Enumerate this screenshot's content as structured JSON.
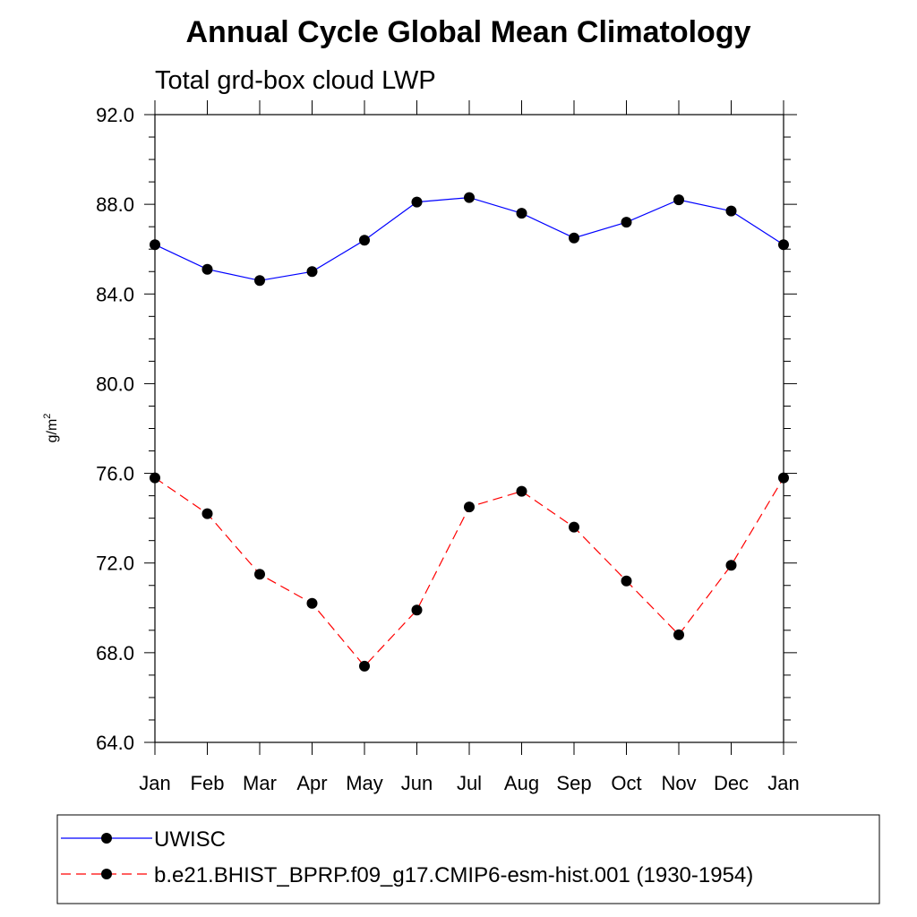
{
  "chart_data": {
    "type": "line",
    "title": "Annual Cycle Global Mean Climatology",
    "subtitle": "Total grd-box cloud LWP",
    "ylabel": "g/m",
    "ylabel_superscript": "2",
    "ylim": [
      64.0,
      92.0
    ],
    "yticks": [
      "64.0",
      "68.0",
      "72.0",
      "76.0",
      "80.0",
      "84.0",
      "88.0",
      "92.0"
    ],
    "categories": [
      "Jan",
      "Feb",
      "Mar",
      "Apr",
      "May",
      "Jun",
      "Jul",
      "Aug",
      "Sep",
      "Oct",
      "Nov",
      "Dec",
      "Jan"
    ],
    "series": [
      {
        "name": "UWISC",
        "color": "#0000ff",
        "dash": "solid",
        "values": [
          86.2,
          85.1,
          84.6,
          85.0,
          86.4,
          88.1,
          88.3,
          87.6,
          86.5,
          87.2,
          88.2,
          87.7,
          86.2
        ]
      },
      {
        "name": "b.e21.BHIST_BPRP.f09_g17.CMIP6-esm-hist.001 (1930-1954)",
        "color": "#ff0000",
        "dash": "dashed",
        "values": [
          75.8,
          74.2,
          71.5,
          70.2,
          67.4,
          69.9,
          74.5,
          75.2,
          73.6,
          71.2,
          68.8,
          71.9,
          75.8
        ]
      }
    ],
    "legend_position": "bottom",
    "grid": false
  }
}
